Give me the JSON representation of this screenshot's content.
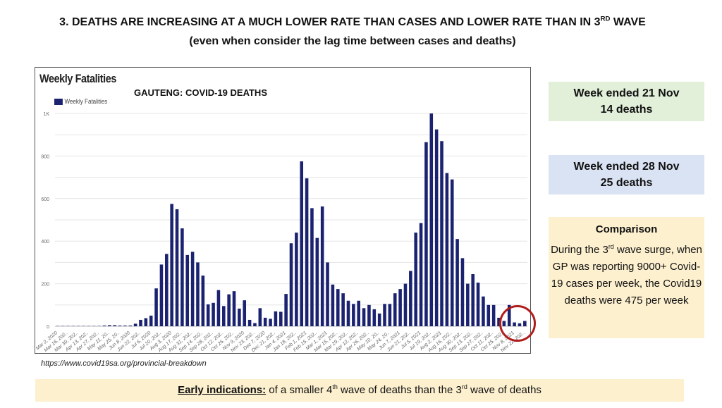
{
  "slide": {
    "title_main": "3. DEATHS ARE INCREASING AT A MUCH LOWER RATE THAN CASES AND LOWER RATE THAN IN 3",
    "title_sup": "RD",
    "title_tail": " WAVE",
    "subtitle": "(even when consider the lag time between cases and deaths)",
    "source": "https://www.covid19sa.org/provincial-breakdown"
  },
  "boxes": {
    "week1": {
      "line1": "Week ended 21 Nov",
      "line2": "14 deaths"
    },
    "week2": {
      "line1": "Week ended 28 Nov",
      "line2": "25 deaths"
    },
    "comparison": {
      "title": "Comparison",
      "body_pre": "During the 3",
      "body_sup": "rd",
      "body_post": " wave surge, when GP was reporting 9000+ Covid-19 cases per week, the Covid19 deaths were 475 per week"
    }
  },
  "banner": {
    "lead": "Early indications:",
    "pre": " of a smaller 4",
    "sup1": "th",
    "mid": " wave of deaths than the 3",
    "sup2": "rd",
    "post": " wave of deaths"
  },
  "colors": {
    "bar": "#1b2370",
    "highlight": "#b01b1b"
  },
  "chart_data": {
    "type": "bar",
    "title": "Weekly Fatalities",
    "subtitle": "GAUTENG: COVID-19 DEATHS",
    "legend": [
      "Weekly Fatalities"
    ],
    "legend_position": "top-left",
    "xlabel": "",
    "ylabel": "",
    "ylim": [
      0,
      1000
    ],
    "yticks": [
      0,
      200,
      400,
      600,
      800,
      1000
    ],
    "ytick_labels": [
      "0",
      "200",
      "400",
      "600",
      "800",
      "1K"
    ],
    "grid": true,
    "tick_labels": [
      "Mar 2, 2020",
      "Mar 16, 202..",
      "Mar 30, 202..",
      "Apr 13, 202..",
      "Apr 27, 202..",
      "May 11, 20..",
      "May 25, 20..",
      "Jun 8, 2020",
      "Jun 22, 202..",
      "Jul 6, 2020",
      "Jul 20, 202..",
      "Aug 3, 2020",
      "Aug 17, 202..",
      "Aug 31, 202..",
      "Sep 14, 202..",
      "Sep 28, 202..",
      "Oct 12, 202..",
      "Oct 26, 202..",
      "Nov 9, 2020",
      "Nov 23, 202..",
      "Dec 7, 2020",
      "Dec 21, 202..",
      "Jan 4, 2021",
      "Jan 18, 202..",
      "Feb 1, 2021",
      "Feb 15, 202..",
      "Mar 1, 2021",
      "Mar 15, 202..",
      "Mar 29, 202..",
      "Apr 12, 202..",
      "Apr 26, 202..",
      "May 10, 20..",
      "May 24, 20..",
      "Jun 7, 2021",
      "Jun 21, 202..",
      "Jul 5, 2021",
      "Jul 19, 202..",
      "Aug 2, 2021",
      "Aug 16, 202..",
      "Aug 30, 202..",
      "Sep 13, 202..",
      "Sep 27, 202..",
      "Oct 11, 202..",
      "Oct 25, 202..",
      "Nov 8, 2021",
      "Nov 22, 202.."
    ],
    "values": [
      0,
      0,
      0,
      0,
      0,
      0,
      0,
      0,
      0,
      2,
      5,
      5,
      2,
      2,
      2,
      12,
      30,
      38,
      50,
      178,
      290,
      340,
      575,
      550,
      460,
      335,
      350,
      300,
      238,
      103,
      110,
      170,
      95,
      150,
      165,
      83,
      122,
      30,
      15,
      85,
      40,
      35,
      70,
      68,
      152,
      390,
      440,
      775,
      695,
      555,
      415,
      563,
      300,
      196,
      175,
      155,
      120,
      105,
      120,
      85,
      100,
      80,
      60,
      105,
      105,
      155,
      175,
      200,
      260,
      440,
      485,
      865,
      1000,
      925,
      870,
      720,
      690,
      410,
      320,
      200,
      245,
      205,
      140,
      100,
      100,
      40,
      25,
      100,
      18,
      14,
      25
    ],
    "highlighted_range": "last 4 weeks (circled)"
  }
}
